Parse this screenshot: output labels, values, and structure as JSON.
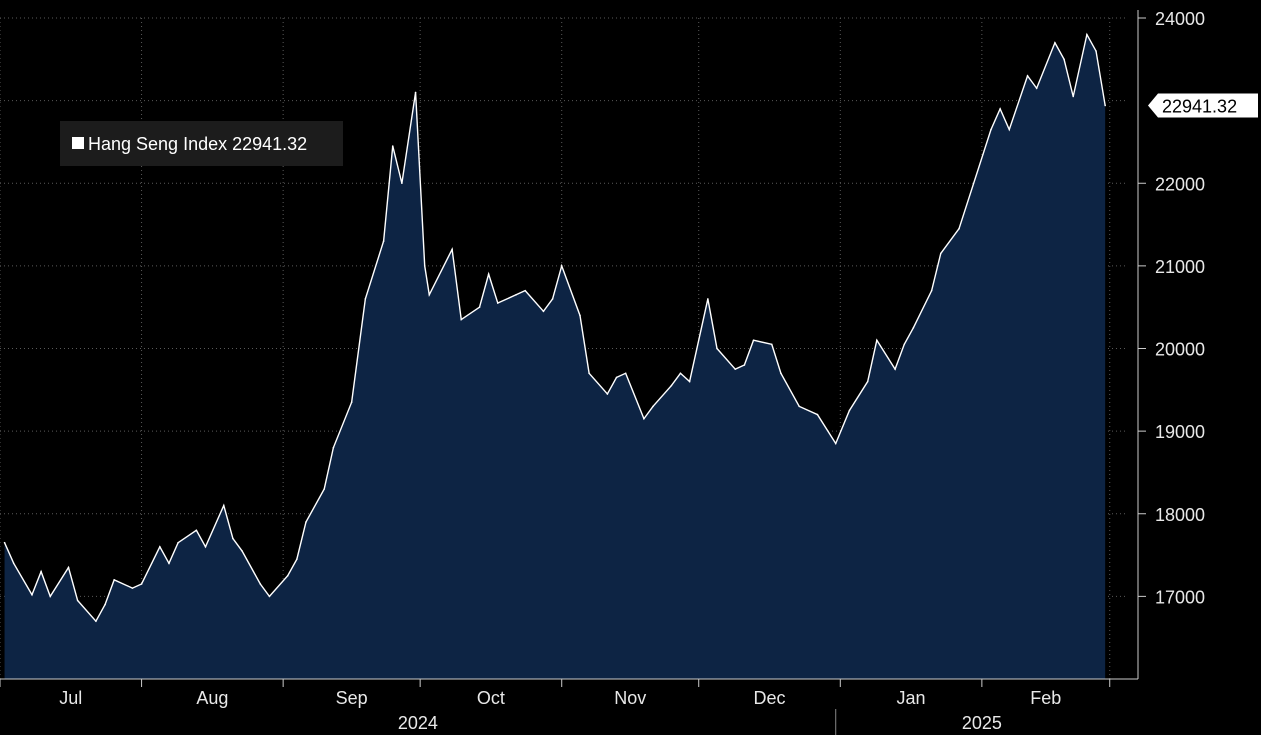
{
  "chart_data": {
    "type": "area",
    "legend": {
      "label": "Hang Seng Index 22941.32",
      "position": "top-left"
    },
    "last_value_label": "22941.32",
    "series": [
      {
        "name": "Hang Seng Index",
        "color": "#ffffff",
        "fill": "#0d2444",
        "x": [
          "2024-07-02",
          "2024-07-04",
          "2024-07-08",
          "2024-07-10",
          "2024-07-12",
          "2024-07-16",
          "2024-07-18",
          "2024-07-22",
          "2024-07-24",
          "2024-07-26",
          "2024-07-30",
          "2024-08-01",
          "2024-08-05",
          "2024-08-07",
          "2024-08-09",
          "2024-08-13",
          "2024-08-15",
          "2024-08-19",
          "2024-08-21",
          "2024-08-23",
          "2024-08-27",
          "2024-08-29",
          "2024-09-02",
          "2024-09-04",
          "2024-09-06",
          "2024-09-10",
          "2024-09-12",
          "2024-09-16",
          "2024-09-19",
          "2024-09-23",
          "2024-09-25",
          "2024-09-27",
          "2024-09-30",
          "2024-10-02",
          "2024-10-03",
          "2024-10-08",
          "2024-10-10",
          "2024-10-14",
          "2024-10-16",
          "2024-10-18",
          "2024-10-22",
          "2024-10-24",
          "2024-10-28",
          "2024-10-30",
          "2024-11-01",
          "2024-11-05",
          "2024-11-07",
          "2024-11-11",
          "2024-11-13",
          "2024-11-15",
          "2024-11-19",
          "2024-11-21",
          "2024-11-25",
          "2024-11-27",
          "2024-11-29",
          "2024-12-03",
          "2024-12-05",
          "2024-12-09",
          "2024-12-11",
          "2024-12-13",
          "2024-12-17",
          "2024-12-19",
          "2024-12-23",
          "2024-12-27",
          "2024-12-31",
          "2025-01-03",
          "2025-01-07",
          "2025-01-09",
          "2025-01-13",
          "2025-01-15",
          "2025-01-17",
          "2025-01-21",
          "2025-01-23",
          "2025-01-27",
          "2025-02-03",
          "2025-02-05",
          "2025-02-07",
          "2025-02-11",
          "2025-02-13",
          "2025-02-17",
          "2025-02-19",
          "2025-02-21",
          "2025-02-24",
          "2025-02-26",
          "2025-02-28"
        ],
        "values": [
          17650,
          17400,
          17020,
          17300,
          17000,
          17350,
          16950,
          16700,
          16900,
          17200,
          17100,
          17150,
          17600,
          17400,
          17650,
          17800,
          17600,
          18100,
          17700,
          17550,
          17150,
          17000,
          17250,
          17450,
          17900,
          18300,
          18800,
          19350,
          20600,
          21300,
          22450,
          22000,
          23100,
          21000,
          20650,
          21200,
          20350,
          20500,
          20900,
          20550,
          20650,
          20700,
          20450,
          20600,
          21000,
          20400,
          19700,
          19450,
          19650,
          19700,
          19150,
          19300,
          19550,
          19700,
          19600,
          20600,
          20000,
          19750,
          19800,
          20100,
          20050,
          19700,
          19300,
          19200,
          18850,
          19250,
          19600,
          20100,
          19750,
          20050,
          20250,
          20700,
          21150,
          21450,
          22650,
          22900,
          22650,
          23300,
          23150,
          23700,
          23500,
          23050,
          23800,
          23600,
          22941.32
        ]
      }
    ],
    "yticks": [
      "17000",
      "18000",
      "19000",
      "20000",
      "21000",
      "22000",
      "24000"
    ],
    "months": [
      "Jul",
      "Aug",
      "Sep",
      "Oct",
      "Nov",
      "Dec",
      "Jan",
      "Feb"
    ],
    "years": [
      "2024",
      "2025"
    ],
    "ylim": [
      16000,
      24000
    ],
    "xlim": [
      "2024-07-01",
      "2025-03-05"
    ],
    "grid": true
  }
}
